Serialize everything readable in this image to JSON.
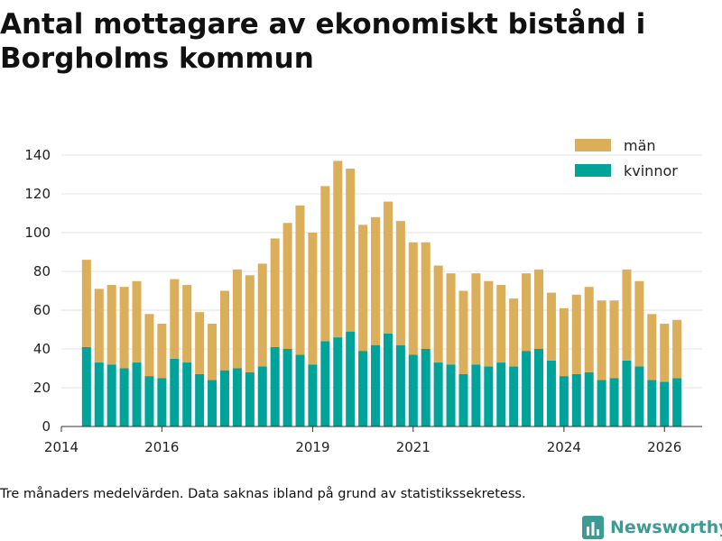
{
  "page": {
    "title": "Antal mottagare av ekonomiskt bistånd i Borgholms kommun",
    "footnote": "Tre månaders medelvärden. Data saknas ibland på grund av statistikssekretess.",
    "brand": "Newsworthy"
  },
  "chart_data": {
    "type": "bar",
    "stacked": true,
    "title": "Antal mottagare av ekonomiskt bistånd i Borgholms kommun",
    "xlabel": "",
    "ylabel": "",
    "ylim": [
      0,
      140
    ],
    "y_ticks": [
      0,
      20,
      40,
      60,
      80,
      100,
      120,
      140
    ],
    "x_ticks": [
      "2014",
      "2016",
      "2019",
      "2021",
      "2024",
      "2026"
    ],
    "x_range": [
      "2014-01",
      "2026-10"
    ],
    "grid": true,
    "legend_position": "top-right",
    "series": [
      {
        "name": "kvinnor",
        "color": "#00a39a",
        "values": [
          41,
          33,
          32,
          30,
          33,
          26,
          25,
          35,
          33,
          27,
          24,
          29,
          30,
          28,
          31,
          41,
          40,
          37,
          32,
          44,
          46,
          49,
          39,
          42,
          48,
          42,
          37,
          40,
          33,
          32,
          27,
          32,
          31,
          33,
          31,
          39,
          40,
          34,
          26,
          27,
          28,
          24,
          25,
          34,
          31,
          24,
          23,
          25
        ]
      },
      {
        "name": "män",
        "color": "#dbae5a",
        "values": [
          45,
          38,
          41,
          42,
          42,
          32,
          28,
          41,
          40,
          32,
          29,
          41,
          51,
          50,
          53,
          56,
          65,
          77,
          68,
          80,
          91,
          84,
          65,
          66,
          68,
          64,
          58,
          55,
          50,
          47,
          43,
          47,
          44,
          40,
          35,
          40,
          41,
          35,
          35,
          41,
          44,
          41,
          40,
          47,
          44,
          34,
          30,
          30
        ]
      }
    ],
    "categories": [
      "2014-07",
      "2014-10",
      "2015-01",
      "2015-04",
      "2015-07",
      "2015-10",
      "2016-01",
      "2016-04",
      "2016-07",
      "2016-10",
      "2017-01",
      "2017-04",
      "2017-07",
      "2017-10",
      "2018-01",
      "2018-04",
      "2018-07",
      "2018-10",
      "2019-01",
      "2019-04",
      "2019-07",
      "2019-10",
      "2020-01",
      "2020-04",
      "2020-07",
      "2020-10",
      "2021-01",
      "2021-04",
      "2021-07",
      "2021-10",
      "2022-01",
      "2022-04",
      "2022-07",
      "2022-10",
      "2023-01",
      "2023-04",
      "2023-07",
      "2023-10",
      "2024-01",
      "2024-04",
      "2024-07",
      "2024-10",
      "2025-01",
      "2025-04",
      "2025-07",
      "2025-10",
      "2026-01",
      "2026-04"
    ]
  }
}
